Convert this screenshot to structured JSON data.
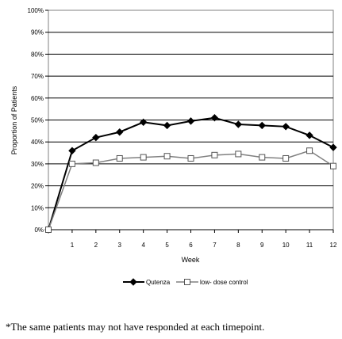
{
  "chart_data": {
    "type": "line",
    "x": [
      0,
      1,
      2,
      3,
      4,
      5,
      6,
      7,
      8,
      9,
      10,
      11,
      12
    ],
    "x_ticks": [
      "1",
      "2",
      "3",
      "4",
      "5",
      "6",
      "7",
      "8",
      "9",
      "10",
      "11",
      "12"
    ],
    "y_ticks": [
      "0%",
      "10%",
      "20%",
      "30%",
      "40%",
      "50%",
      "60%",
      "70%",
      "80%",
      "90%",
      "100%"
    ],
    "xlabel": "Week",
    "ylabel": "Proportion of Patients",
    "ylim": [
      0,
      100
    ],
    "xlim": [
      0,
      12
    ],
    "grid": "horizontal",
    "legend_position": "bottom",
    "series": [
      {
        "name": "Qutenza",
        "marker": "filled-diamond",
        "color": "#000000",
        "values": [
          0,
          36,
          42,
          44.5,
          49,
          47.5,
          49.5,
          51,
          48,
          47.5,
          47,
          43,
          37.5
        ]
      },
      {
        "name": "low- dose control",
        "marker": "open-square",
        "color": "#808080",
        "values": [
          0,
          30,
          30.5,
          32.5,
          33,
          33.5,
          32.5,
          34,
          34.5,
          33,
          32.5,
          36,
          29
        ]
      }
    ]
  },
  "footnote": "*The same patients may not have responded at each timepoint."
}
